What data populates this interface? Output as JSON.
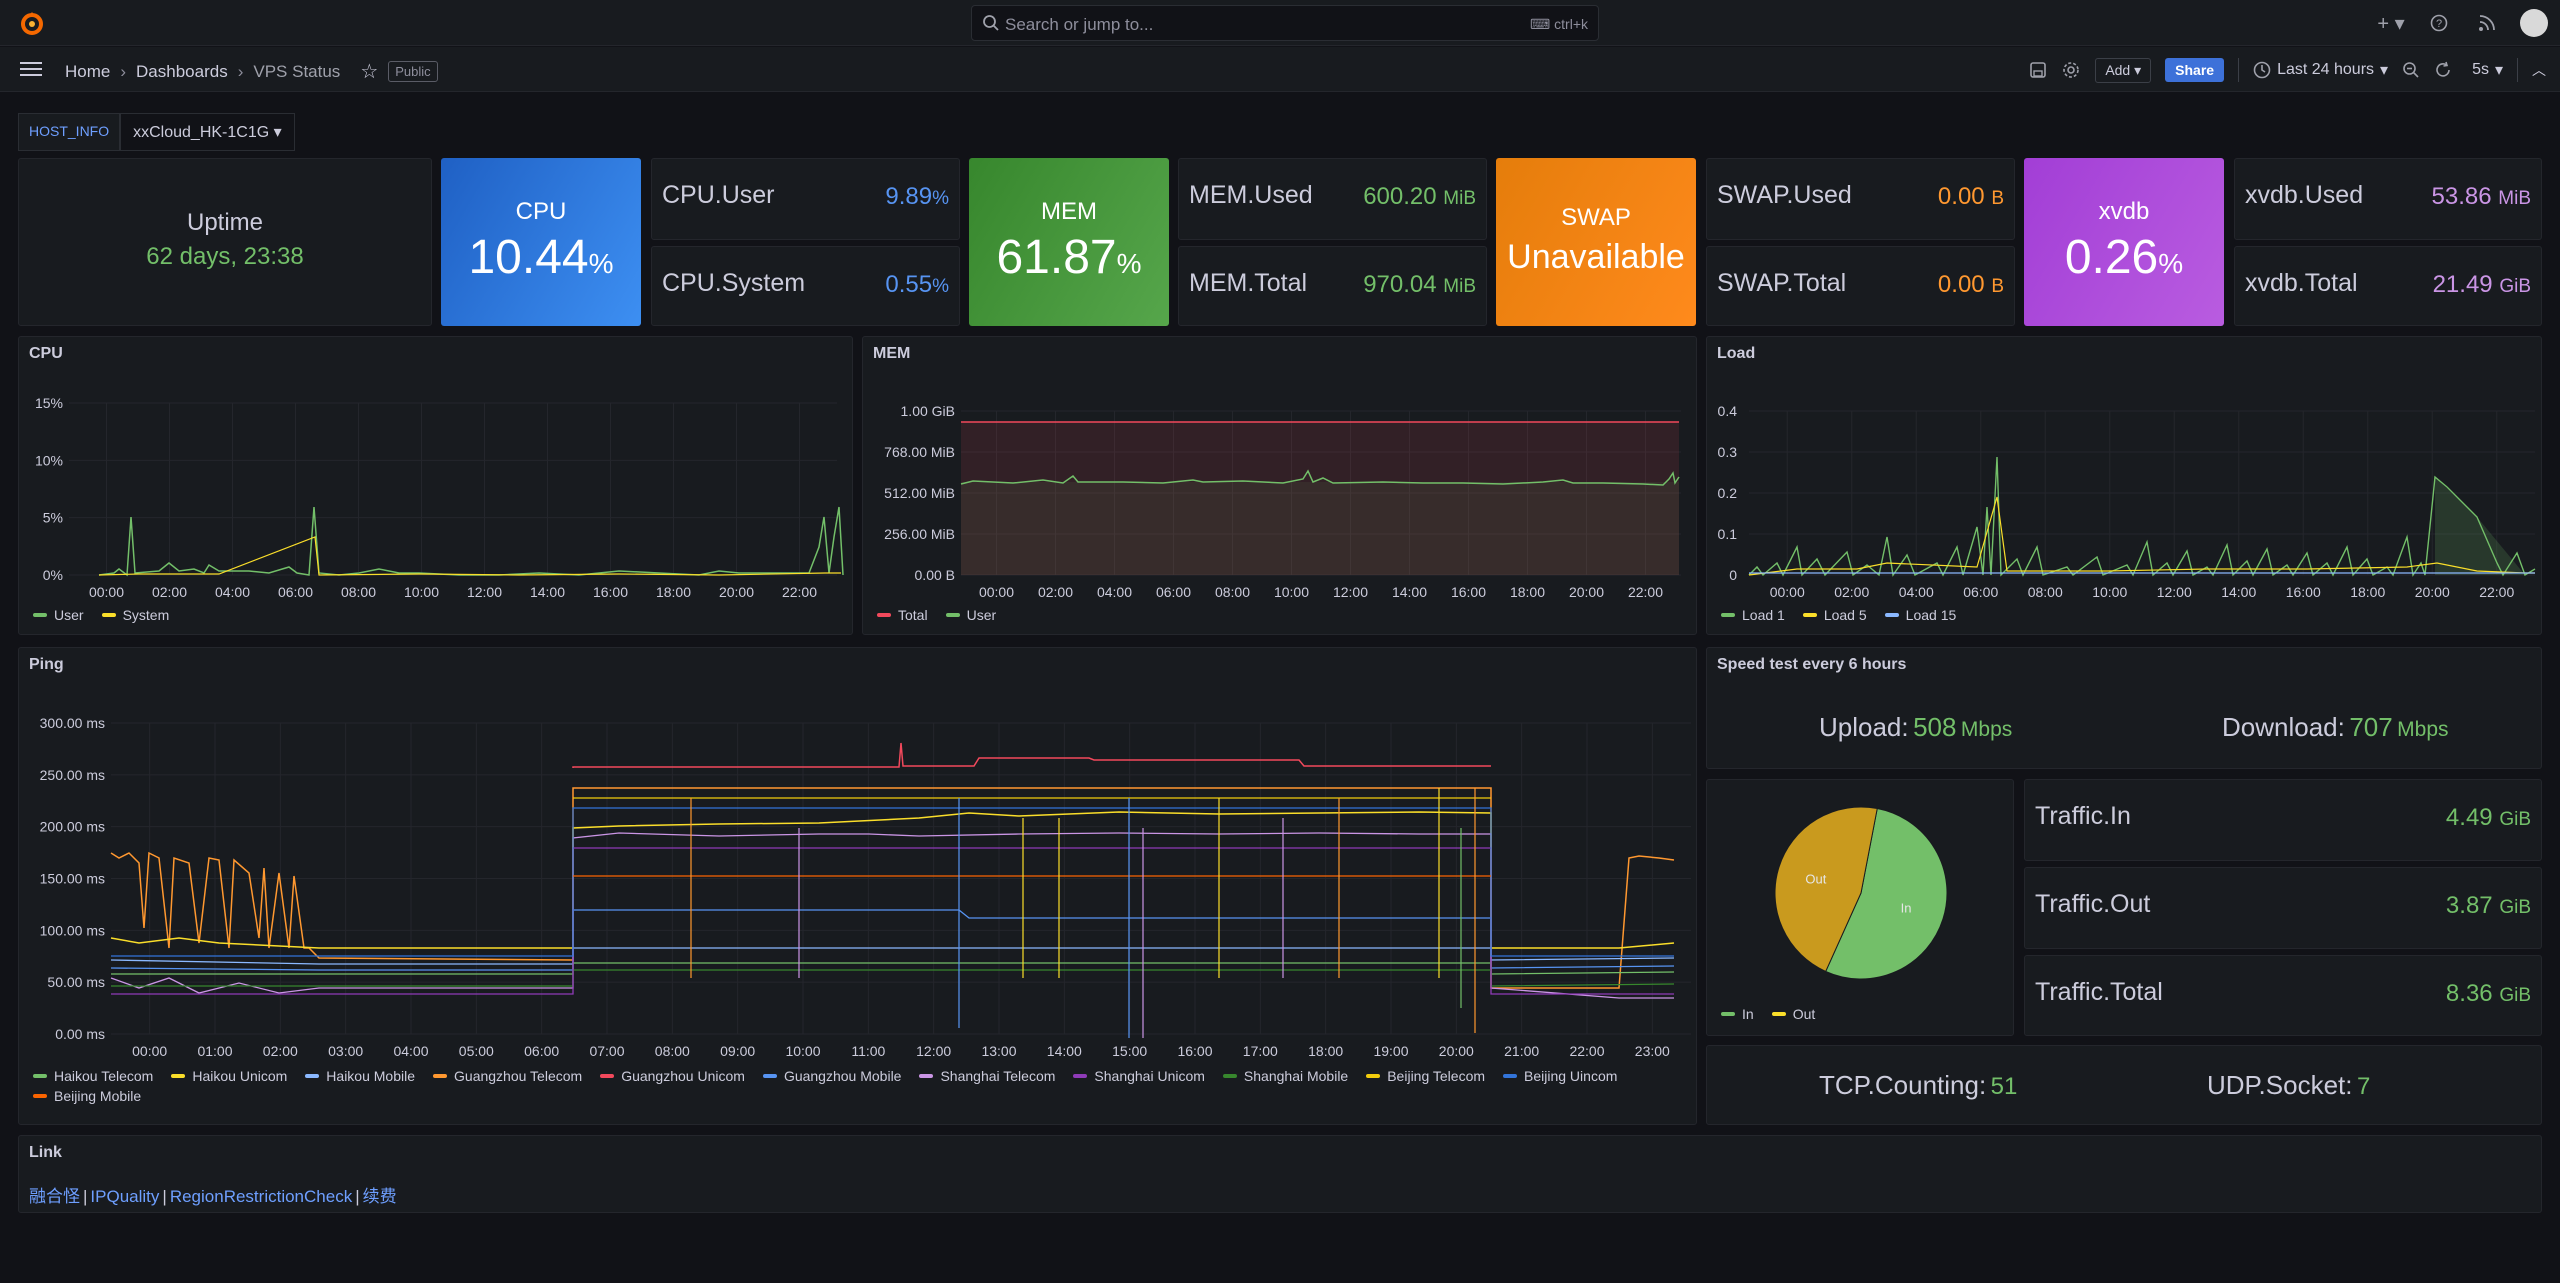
{
  "search": {
    "placeholder": "Search or jump to...",
    "shortcut": "ctrl+k"
  },
  "breadcrumb": {
    "home": "Home",
    "dashboards": "Dashboards",
    "current": "VPS Status",
    "badge": "Public"
  },
  "toolbar": {
    "add": "Add",
    "share": "Share",
    "time_range": "Last 24 hours",
    "refresh": "5s"
  },
  "variable": {
    "label": "HOST_INFO",
    "value": "xxCloud_HK-1C1G"
  },
  "uptime": {
    "title": "Uptime",
    "value": "62 days, 23:38"
  },
  "cpu_stat": {
    "title": "CPU",
    "value": "10.44",
    "unit": "%"
  },
  "cpu_user": {
    "label": "CPU.User",
    "value": "9.89",
    "unit": "%"
  },
  "cpu_system": {
    "label": "CPU.System",
    "value": "0.55",
    "unit": "%"
  },
  "mem_stat": {
    "title": "MEM",
    "value": "61.87",
    "unit": "%"
  },
  "mem_used": {
    "label": "MEM.Used",
    "value": "600.20",
    "unit": "MiB"
  },
  "mem_total": {
    "label": "MEM.Total",
    "value": "970.04",
    "unit": "MiB"
  },
  "swap_stat": {
    "title": "SWAP",
    "value": "Unavailable"
  },
  "swap_used": {
    "label": "SWAP.Used",
    "value": "0.00",
    "unit": "B"
  },
  "swap_total": {
    "label": "SWAP.Total",
    "value": "0.00",
    "unit": "B"
  },
  "xvdb_stat": {
    "title": "xvdb",
    "value": "0.26",
    "unit": "%"
  },
  "xvdb_used": {
    "label": "xvdb.Used",
    "value": "53.86",
    "unit": "MiB"
  },
  "xvdb_total": {
    "label": "xvdb.Total",
    "value": "21.49",
    "unit": "GiB"
  },
  "colors": {
    "green": "#73bf69",
    "orange": "#ff9830",
    "blue": "#5794f2",
    "purple": "#ca95e5",
    "yellow": "#fade2a",
    "red": "#f2495c"
  },
  "panels": {
    "cpu": {
      "title": "CPU",
      "yticks": [
        "15%",
        "10%",
        "5%",
        "0%"
      ],
      "xticks": [
        "00:00",
        "02:00",
        "04:00",
        "06:00",
        "08:00",
        "10:00",
        "12:00",
        "14:00",
        "16:00",
        "18:00",
        "20:00",
        "22:00"
      ],
      "legend": [
        {
          "name": "User",
          "color": "#73bf69"
        },
        {
          "name": "System",
          "color": "#fade2a"
        }
      ]
    },
    "mem": {
      "title": "MEM",
      "yticks": [
        "1.00 GiB",
        "768.00 MiB",
        "512.00 MiB",
        "256.00 MiB",
        "0.00 B"
      ],
      "xticks": [
        "00:00",
        "02:00",
        "04:00",
        "06:00",
        "08:00",
        "10:00",
        "12:00",
        "14:00",
        "16:00",
        "18:00",
        "20:00",
        "22:00"
      ],
      "legend": [
        {
          "name": "Total",
          "color": "#f2495c"
        },
        {
          "name": "User",
          "color": "#73bf69"
        }
      ]
    },
    "load": {
      "title": "Load",
      "yticks": [
        "0.4",
        "0.3",
        "0.2",
        "0.1",
        "0"
      ],
      "xticks": [
        "00:00",
        "02:00",
        "04:00",
        "06:00",
        "08:00",
        "10:00",
        "12:00",
        "14:00",
        "16:00",
        "18:00",
        "20:00",
        "22:00"
      ],
      "legend": [
        {
          "name": "Load 1",
          "color": "#73bf69"
        },
        {
          "name": "Load 5",
          "color": "#fade2a"
        },
        {
          "name": "Load 15",
          "color": "#8ab8ff"
        }
      ]
    },
    "ping": {
      "title": "Ping",
      "yticks": [
        "300.00 ms",
        "250.00 ms",
        "200.00 ms",
        "150.00 ms",
        "100.00 ms",
        "50.00 ms",
        "0.00 ms"
      ],
      "xticks": [
        "00:00",
        "01:00",
        "02:00",
        "03:00",
        "04:00",
        "05:00",
        "06:00",
        "07:00",
        "08:00",
        "09:00",
        "10:00",
        "11:00",
        "12:00",
        "13:00",
        "14:00",
        "15:00",
        "16:00",
        "17:00",
        "18:00",
        "19:00",
        "20:00",
        "21:00",
        "22:00",
        "23:00"
      ],
      "legend": [
        {
          "name": "Haikou Telecom",
          "color": "#73bf69"
        },
        {
          "name": "Haikou Unicom",
          "color": "#fade2a"
        },
        {
          "name": "Haikou Mobile",
          "color": "#8ab8ff"
        },
        {
          "name": "Guangzhou Telecom",
          "color": "#ff9830"
        },
        {
          "name": "Guangzhou Unicom",
          "color": "#f2495c"
        },
        {
          "name": "Guangzhou Mobile",
          "color": "#5794f2"
        },
        {
          "name": "Shanghai Telecom",
          "color": "#ca95e5"
        },
        {
          "name": "Shanghai Unicom",
          "color": "#8f3bb8"
        },
        {
          "name": "Shanghai Mobile",
          "color": "#37872d"
        },
        {
          "name": "Beijing Telecom",
          "color": "#f2cc0c"
        },
        {
          "name": "Beijing Uincom",
          "color": "#3274d9"
        },
        {
          "name": "Beijing Mobile",
          "color": "#fa6400"
        }
      ]
    },
    "speed": {
      "title": "Speed test every 6 hours",
      "upload_label": "Upload:",
      "upload_value": "508",
      "upload_unit": "Mbps",
      "download_label": "Download:",
      "download_value": "707",
      "download_unit": "Mbps"
    },
    "traffic_pie": {
      "legend": [
        {
          "name": "In",
          "color": "#73bf69"
        },
        {
          "name": "Out",
          "color": "#fade2a"
        }
      ]
    },
    "traffic_in": {
      "label": "Traffic.In",
      "value": "4.49",
      "unit": "GiB"
    },
    "traffic_out": {
      "label": "Traffic.Out",
      "value": "3.87",
      "unit": "GiB"
    },
    "traffic_total": {
      "label": "Traffic.Total",
      "value": "8.36",
      "unit": "GiB"
    },
    "tcp": {
      "label": "TCP.Counting:",
      "value": "51"
    },
    "udp": {
      "label": "UDP.Socket:",
      "value": "7"
    },
    "links": {
      "title": "Link",
      "items": [
        "融合怪",
        "IPQuality",
        "RegionRestrictionCheck",
        "续费"
      ]
    }
  },
  "chart_data": [
    {
      "type": "pie",
      "title": "",
      "categories": [
        "In",
        "Out"
      ],
      "values": [
        4.49,
        3.87
      ],
      "labels": [
        "In",
        "Out"
      ]
    }
  ]
}
